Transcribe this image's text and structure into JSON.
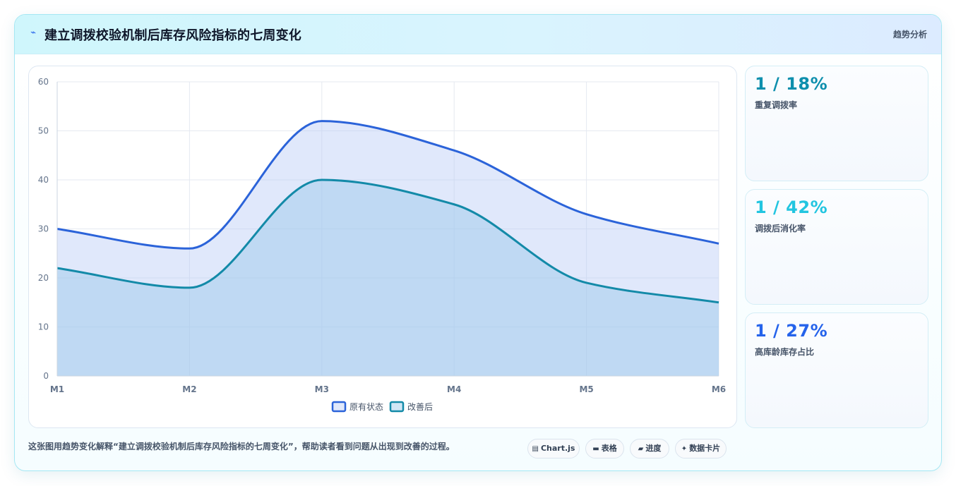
{
  "header": {
    "icon": "pulse-icon",
    "title": "建立调拨校验机制后库存风险指标的七周变化",
    "tag": "趋势分析"
  },
  "kpis": [
    {
      "value": "1 / 18%",
      "label": "重复调拨率",
      "color": "#0e8fad"
    },
    {
      "value": "1 / 42%",
      "label": "调拨后消化率",
      "color": "#22c5e0"
    },
    {
      "value": "1 / 27%",
      "label": "高库龄库存占比",
      "color": "#2563eb"
    }
  ],
  "footer": {
    "text": "这张图用趋势变化解释“建立调拨校验机制后库存风险指标的七周变化”，帮助读者看到问题从出现到改善的过程。",
    "chips": [
      {
        "icon": "chart-icon",
        "glyph": "▤",
        "label": "Chart.js"
      },
      {
        "icon": "table-icon",
        "glyph": "▬",
        "label": "表格"
      },
      {
        "icon": "progress-icon",
        "glyph": "▰",
        "label": "进度"
      },
      {
        "icon": "sparkle-icon",
        "glyph": "✦",
        "label": "数据卡片"
      }
    ]
  },
  "chart_data": {
    "type": "area",
    "categories": [
      "M1",
      "M2",
      "M3",
      "M4",
      "M5",
      "M6"
    ],
    "ylim": [
      0,
      60
    ],
    "yticks": [
      0,
      10,
      20,
      30,
      40,
      50,
      60
    ],
    "grid": true,
    "legend_position": "bottom",
    "series": [
      {
        "name": "原有状态",
        "values": [
          30,
          26,
          52,
          46,
          33,
          27
        ],
        "color": "#2b63d9",
        "fill": "rgba(180,200,245,0.42)"
      },
      {
        "name": "改善后",
        "values": [
          22,
          18,
          40,
          35,
          19,
          15
        ],
        "color": "#138aa8",
        "fill": "rgba(150,200,232,0.45)"
      }
    ]
  }
}
